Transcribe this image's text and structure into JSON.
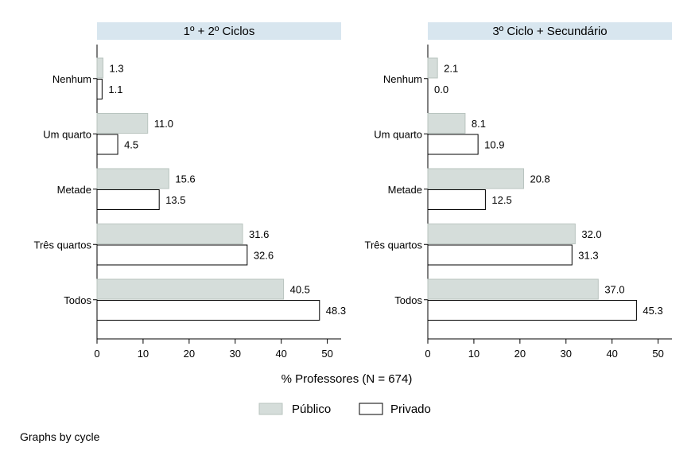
{
  "chart_data": {
    "type": "bar",
    "orientation": "horizontal",
    "categories": [
      "Nenhum",
      "Um quarto",
      "Metade",
      "Três quartos",
      "Todos"
    ],
    "panels": [
      {
        "title": "1º + 2º Ciclos",
        "series": [
          {
            "name": "Público",
            "values": [
              1.3,
              11.0,
              15.6,
              31.6,
              40.5
            ]
          },
          {
            "name": "Privado",
            "values": [
              1.1,
              4.5,
              13.5,
              32.6,
              48.3
            ]
          }
        ]
      },
      {
        "title": "3º Ciclo + Secundário",
        "series": [
          {
            "name": "Público",
            "values": [
              2.1,
              8.1,
              20.8,
              32.0,
              37.0
            ]
          },
          {
            "name": "Privado",
            "values": [
              0.0,
              10.9,
              12.5,
              31.3,
              45.3
            ]
          }
        ]
      }
    ],
    "xlabel": "% Professores (N = 674)",
    "xlim": [
      0,
      53
    ],
    "xticks": [
      0,
      10,
      20,
      30,
      40,
      50
    ],
    "legend": [
      "Público",
      "Privado"
    ],
    "legend_position": "bottom",
    "grid": false,
    "colors": {
      "Público": "#d5ddda",
      "Privado": "#ffffff",
      "panel_header": "#d8e6ef"
    }
  },
  "note": "Graphs by cycle"
}
